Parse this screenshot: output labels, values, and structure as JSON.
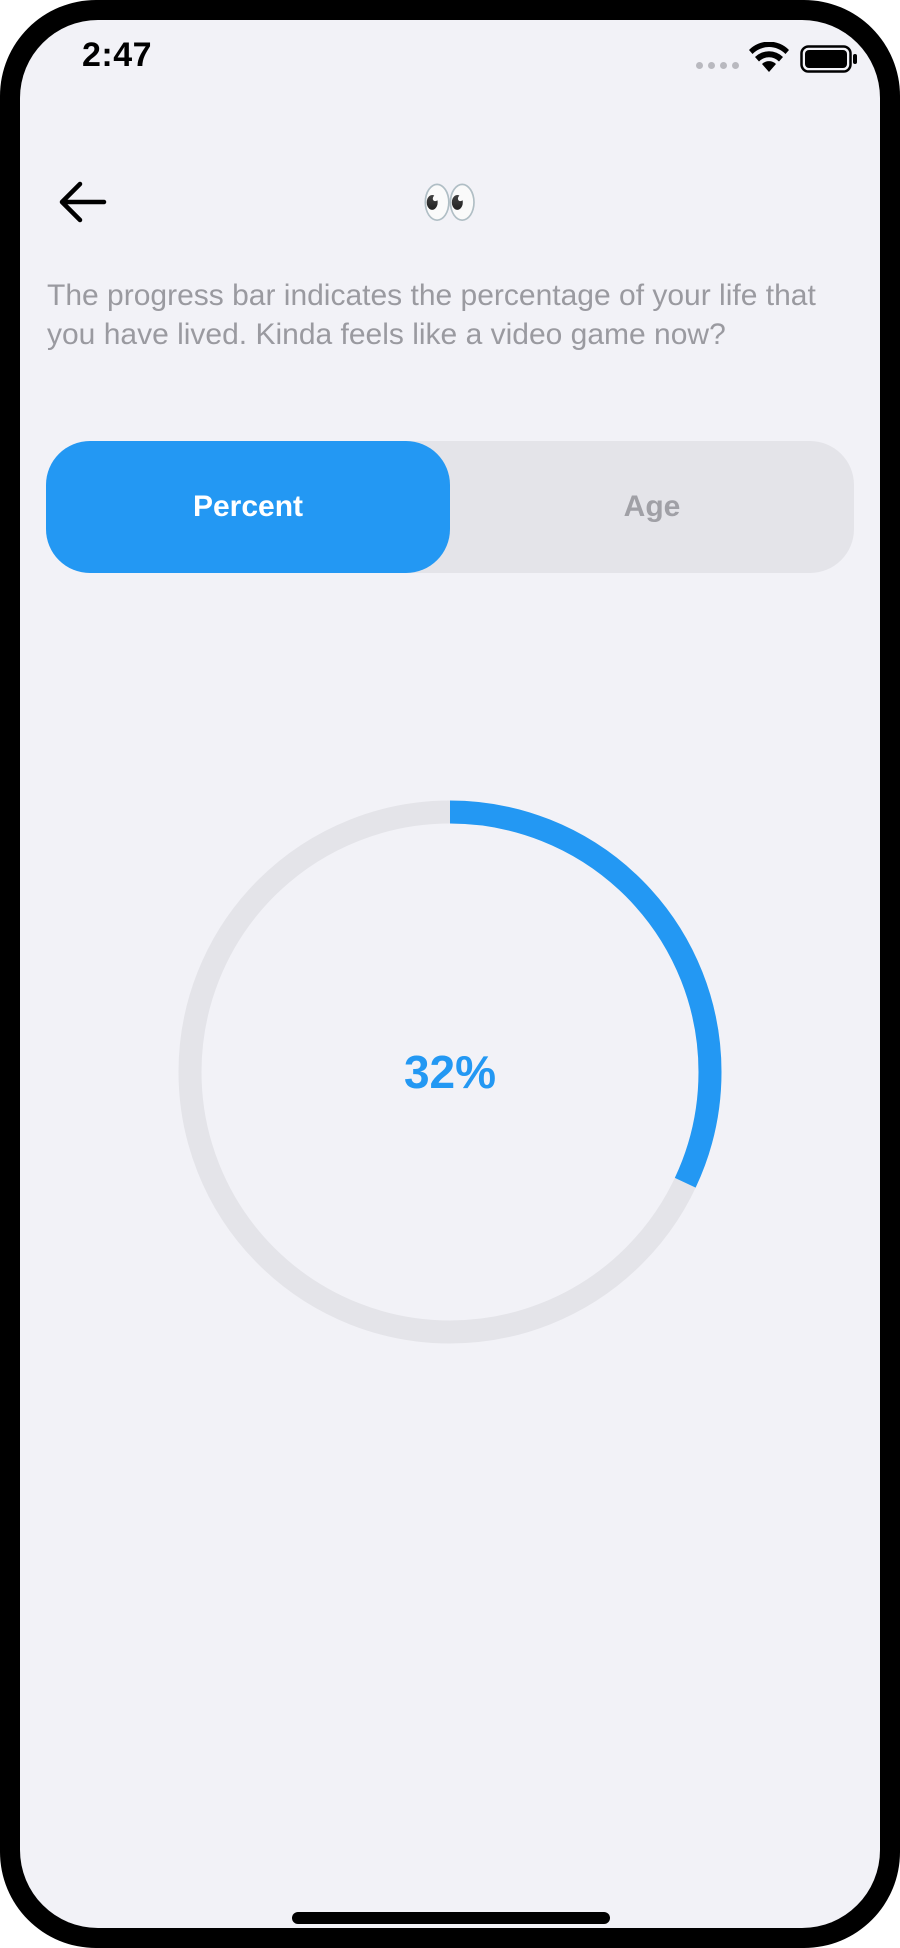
{
  "status_bar": {
    "time": "2:47"
  },
  "header": {
    "back_icon": "arrow-left-icon",
    "emoji": "👀"
  },
  "description": "The progress bar indicates the percentage of your life that you have lived. Kinda feels like a video game now?",
  "segmented_control": {
    "options": [
      {
        "label": "Percent",
        "selected": true
      },
      {
        "label": "Age",
        "selected": false
      }
    ]
  },
  "progress": {
    "label": "32%",
    "fraction": 0.32
  },
  "colors": {
    "accent": "#2398f3",
    "track": "#e4e4e9",
    "background": "#f2f2f7",
    "muted_text": "#9a9aa0"
  }
}
